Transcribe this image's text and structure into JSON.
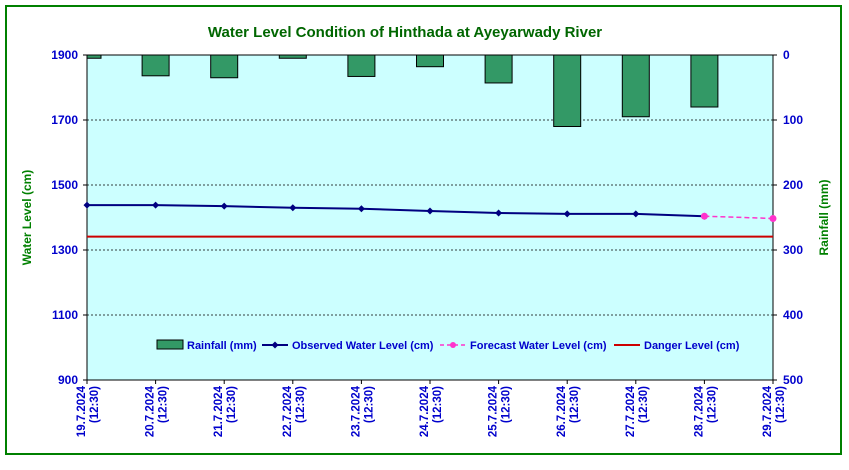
{
  "chart_data": {
    "type": "bar+line",
    "title": "Water Level Condition of Hinthada at Ayeyarwady River",
    "ylabel_left": "Water Level (cm)",
    "ylabel_right": "Rainfall (mm)",
    "ylim_left": [
      900,
      1900
    ],
    "yticks_left": [
      900,
      1100,
      1300,
      1500,
      1700,
      1900
    ],
    "ylim_right_inverted": [
      0,
      500
    ],
    "yticks_right": [
      0,
      100,
      200,
      300,
      400,
      500
    ],
    "categories": [
      [
        "19.7.2024",
        "(12:30)"
      ],
      [
        "20.7.2024",
        "(12:30)"
      ],
      [
        "21.7.2024",
        "(12:30)"
      ],
      [
        "22.7.2024",
        "(12:30)"
      ],
      [
        "23.7.2024",
        "(12:30)"
      ],
      [
        "24.7.2024",
        "(12:30)"
      ],
      [
        "25.7.2024",
        "(12:30)"
      ],
      [
        "26.7.2024",
        "(12:30)"
      ],
      [
        "27.7.2024",
        "(12:30)"
      ],
      [
        "28.7.2024",
        "(12:30)"
      ],
      [
        "29.7.2024",
        "(12:30)"
      ]
    ],
    "series": [
      {
        "name": "Rainfall (mm)",
        "kind": "bar",
        "axis": "right",
        "values": [
          5,
          32,
          35,
          5,
          33,
          18,
          43,
          110,
          95,
          80,
          null
        ]
      },
      {
        "name": "Observed Water Level (cm)",
        "kind": "line",
        "axis": "left",
        "values": [
          1438,
          1438,
          1435,
          1430,
          1427,
          1420,
          1414,
          1411,
          1411,
          1404,
          null
        ]
      },
      {
        "name": "Forecast Water Level (cm)",
        "kind": "dashed-line",
        "axis": "left",
        "values": [
          null,
          null,
          null,
          null,
          null,
          null,
          null,
          null,
          null,
          1404,
          1397
        ]
      },
      {
        "name": "Danger Level (cm)",
        "kind": "hline",
        "axis": "left",
        "value": 1341
      }
    ],
    "colors": {
      "plot_bg": "#ccffff",
      "frame": "#008000",
      "title": "#006600",
      "axis_label": "#008000",
      "tick_label": "#0000cc",
      "bar_fill": "#339966",
      "observed": "#000080",
      "forecast": "#ff33cc",
      "danger": "#cc0000"
    },
    "grid": true,
    "legend": "inside-bottom"
  }
}
